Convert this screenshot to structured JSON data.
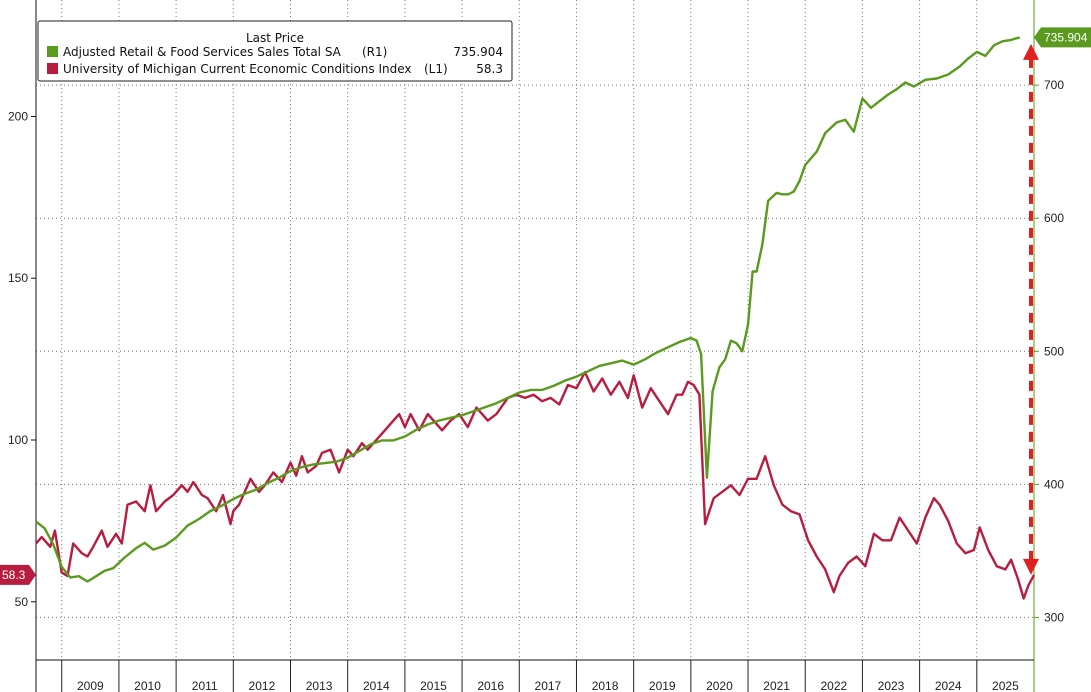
{
  "chart_data": {
    "type": "line",
    "title": "",
    "legend": {
      "header": "Last Price",
      "placement": "top-left",
      "entries": [
        {
          "name": "Adjusted Retail & Food Services Sales Total SA",
          "axis": "(R1)",
          "last": "735.904",
          "color": "#5a9a1e"
        },
        {
          "name": "University of Michigan Current Economic Conditions Index",
          "axis": "(L1)",
          "last": "58.3",
          "color": "#b81c3f"
        }
      ]
    },
    "x_axis": {
      "range": [
        2008.55,
        2026.0
      ],
      "year_labels": [
        "2009",
        "2010",
        "2011",
        "2012",
        "2013",
        "2014",
        "2015",
        "2016",
        "2017",
        "2018",
        "2019",
        "2020",
        "2021",
        "2022",
        "2023",
        "2024",
        "2025"
      ]
    },
    "left_axis": {
      "range": [
        32,
        236
      ],
      "ticks": [
        50,
        100,
        150,
        200
      ],
      "tick_labels": [
        "50",
        "100",
        "150",
        "200"
      ]
    },
    "right_axis": {
      "range": [
        268,
        764
      ],
      "ticks": [
        300,
        400,
        500,
        600,
        700
      ],
      "tick_labels": [
        "300",
        "400",
        "500",
        "600",
        "700"
      ]
    },
    "grid": "dotted",
    "series": [
      {
        "name": "University of Michigan Current Economic Conditions Index",
        "axis": "left",
        "color": "#b81c3f",
        "points": [
          [
            2008.55,
            68
          ],
          [
            2008.65,
            70
          ],
          [
            2008.8,
            67
          ],
          [
            2008.88,
            72
          ],
          [
            2009.0,
            59
          ],
          [
            2009.1,
            58
          ],
          [
            2009.2,
            68
          ],
          [
            2009.35,
            65
          ],
          [
            2009.45,
            64
          ],
          [
            2009.55,
            67
          ],
          [
            2009.7,
            72
          ],
          [
            2009.8,
            67
          ],
          [
            2009.95,
            71
          ],
          [
            2010.05,
            68
          ],
          [
            2010.15,
            80
          ],
          [
            2010.3,
            81
          ],
          [
            2010.45,
            78
          ],
          [
            2010.55,
            86
          ],
          [
            2010.65,
            78
          ],
          [
            2010.8,
            81
          ],
          [
            2010.95,
            83
          ],
          [
            2011.1,
            86
          ],
          [
            2011.2,
            84
          ],
          [
            2011.3,
            87
          ],
          [
            2011.45,
            83
          ],
          [
            2011.55,
            82
          ],
          [
            2011.7,
            78
          ],
          [
            2011.82,
            83
          ],
          [
            2011.95,
            74
          ],
          [
            2012.0,
            78
          ],
          [
            2012.1,
            80
          ],
          [
            2012.2,
            84
          ],
          [
            2012.3,
            88
          ],
          [
            2012.45,
            84
          ],
          [
            2012.55,
            86
          ],
          [
            2012.7,
            90
          ],
          [
            2012.85,
            87
          ],
          [
            2013.0,
            93
          ],
          [
            2013.1,
            89
          ],
          [
            2013.2,
            95
          ],
          [
            2013.3,
            90
          ],
          [
            2013.45,
            92
          ],
          [
            2013.55,
            96
          ],
          [
            2013.7,
            97
          ],
          [
            2013.85,
            90
          ],
          [
            2014.0,
            97
          ],
          [
            2014.1,
            95
          ],
          [
            2014.25,
            99
          ],
          [
            2014.35,
            97
          ],
          [
            2014.5,
            100
          ],
          [
            2014.65,
            103
          ],
          [
            2014.75,
            105
          ],
          [
            2014.9,
            108
          ],
          [
            2015.0,
            104
          ],
          [
            2015.1,
            108
          ],
          [
            2015.25,
            103
          ],
          [
            2015.4,
            108
          ],
          [
            2015.5,
            106
          ],
          [
            2015.65,
            103
          ],
          [
            2015.8,
            106
          ],
          [
            2015.95,
            108
          ],
          [
            2016.1,
            104
          ],
          [
            2016.25,
            110
          ],
          [
            2016.45,
            106
          ],
          [
            2016.6,
            108
          ],
          [
            2016.8,
            113
          ],
          [
            2016.95,
            114
          ],
          [
            2017.1,
            113
          ],
          [
            2017.25,
            114
          ],
          [
            2017.4,
            112
          ],
          [
            2017.55,
            113
          ],
          [
            2017.7,
            111
          ],
          [
            2017.85,
            117
          ],
          [
            2018.0,
            116
          ],
          [
            2018.15,
            121
          ],
          [
            2018.3,
            115
          ],
          [
            2018.45,
            119
          ],
          [
            2018.6,
            114
          ],
          [
            2018.75,
            118
          ],
          [
            2018.9,
            113
          ],
          [
            2019.0,
            120
          ],
          [
            2019.15,
            110
          ],
          [
            2019.3,
            116
          ],
          [
            2019.45,
            112
          ],
          [
            2019.6,
            108
          ],
          [
            2019.75,
            114
          ],
          [
            2019.85,
            114
          ],
          [
            2019.95,
            118
          ],
          [
            2020.05,
            117
          ],
          [
            2020.15,
            114
          ],
          [
            2020.25,
            74
          ],
          [
            2020.4,
            82
          ],
          [
            2020.55,
            84
          ],
          [
            2020.7,
            86
          ],
          [
            2020.85,
            83
          ],
          [
            2021.0,
            88
          ],
          [
            2021.15,
            88
          ],
          [
            2021.3,
            95
          ],
          [
            2021.45,
            86
          ],
          [
            2021.6,
            80
          ],
          [
            2021.75,
            78
          ],
          [
            2021.9,
            77
          ],
          [
            2022.05,
            69
          ],
          [
            2022.2,
            64
          ],
          [
            2022.35,
            60
          ],
          [
            2022.5,
            53
          ],
          [
            2022.6,
            58
          ],
          [
            2022.75,
            62
          ],
          [
            2022.9,
            64
          ],
          [
            2023.05,
            61
          ],
          [
            2023.2,
            71
          ],
          [
            2023.35,
            69
          ],
          [
            2023.5,
            69
          ],
          [
            2023.65,
            76
          ],
          [
            2023.8,
            72
          ],
          [
            2023.95,
            68
          ],
          [
            2024.1,
            76
          ],
          [
            2024.25,
            82
          ],
          [
            2024.35,
            80
          ],
          [
            2024.5,
            75
          ],
          [
            2024.65,
            68
          ],
          [
            2024.8,
            65
          ],
          [
            2024.95,
            66
          ],
          [
            2025.05,
            73
          ],
          [
            2025.2,
            66
          ],
          [
            2025.35,
            61
          ],
          [
            2025.5,
            60
          ],
          [
            2025.6,
            63
          ],
          [
            2025.72,
            57
          ],
          [
            2025.82,
            51
          ],
          [
            2025.9,
            55
          ],
          [
            2026.0,
            58.3
          ]
        ]
      },
      {
        "name": "Adjusted Retail & Food Services Sales Total SA",
        "axis": "right",
        "color": "#5a9a1e",
        "points": [
          [
            2008.55,
            372
          ],
          [
            2008.7,
            367
          ],
          [
            2008.85,
            355
          ],
          [
            2009.0,
            338
          ],
          [
            2009.15,
            330
          ],
          [
            2009.3,
            331
          ],
          [
            2009.45,
            327
          ],
          [
            2009.6,
            331
          ],
          [
            2009.75,
            335
          ],
          [
            2009.9,
            337
          ],
          [
            2010.1,
            345
          ],
          [
            2010.3,
            352
          ],
          [
            2010.45,
            356
          ],
          [
            2010.6,
            351
          ],
          [
            2010.8,
            354
          ],
          [
            2011.0,
            360
          ],
          [
            2011.2,
            369
          ],
          [
            2011.4,
            374
          ],
          [
            2011.6,
            380
          ],
          [
            2011.8,
            384
          ],
          [
            2012.0,
            389
          ],
          [
            2012.2,
            393
          ],
          [
            2012.4,
            396
          ],
          [
            2012.6,
            401
          ],
          [
            2012.8,
            405
          ],
          [
            2013.0,
            410
          ],
          [
            2013.2,
            413
          ],
          [
            2013.4,
            415
          ],
          [
            2013.6,
            416
          ],
          [
            2013.8,
            417
          ],
          [
            2014.0,
            420
          ],
          [
            2014.2,
            425
          ],
          [
            2014.4,
            430
          ],
          [
            2014.6,
            433
          ],
          [
            2014.8,
            433
          ],
          [
            2015.0,
            436
          ],
          [
            2015.2,
            441
          ],
          [
            2015.4,
            445
          ],
          [
            2015.6,
            448
          ],
          [
            2015.8,
            450
          ],
          [
            2016.0,
            452
          ],
          [
            2016.2,
            455
          ],
          [
            2016.4,
            458
          ],
          [
            2016.6,
            461
          ],
          [
            2016.8,
            465
          ],
          [
            2017.0,
            469
          ],
          [
            2017.2,
            471
          ],
          [
            2017.4,
            471
          ],
          [
            2017.6,
            474
          ],
          [
            2017.8,
            478
          ],
          [
            2018.0,
            481
          ],
          [
            2018.2,
            485
          ],
          [
            2018.4,
            489
          ],
          [
            2018.6,
            491
          ],
          [
            2018.8,
            493
          ],
          [
            2019.0,
            490
          ],
          [
            2019.2,
            494
          ],
          [
            2019.4,
            499
          ],
          [
            2019.6,
            503
          ],
          [
            2019.8,
            507
          ],
          [
            2020.0,
            510
          ],
          [
            2020.1,
            508
          ],
          [
            2020.18,
            498
          ],
          [
            2020.28,
            405
          ],
          [
            2020.38,
            470
          ],
          [
            2020.5,
            488
          ],
          [
            2020.6,
            494
          ],
          [
            2020.7,
            508
          ],
          [
            2020.8,
            506
          ],
          [
            2020.9,
            500
          ],
          [
            2021.0,
            520
          ],
          [
            2021.08,
            560
          ],
          [
            2021.15,
            560
          ],
          [
            2021.25,
            580
          ],
          [
            2021.35,
            613
          ],
          [
            2021.5,
            619
          ],
          [
            2021.6,
            618
          ],
          [
            2021.7,
            618
          ],
          [
            2021.8,
            620
          ],
          [
            2021.9,
            628
          ],
          [
            2022.0,
            640
          ],
          [
            2022.2,
            650
          ],
          [
            2022.35,
            664
          ],
          [
            2022.55,
            672
          ],
          [
            2022.7,
            674
          ],
          [
            2022.85,
            665
          ],
          [
            2023.0,
            690
          ],
          [
            2023.15,
            683
          ],
          [
            2023.3,
            688
          ],
          [
            2023.45,
            693
          ],
          [
            2023.6,
            697
          ],
          [
            2023.75,
            702
          ],
          [
            2023.9,
            699
          ],
          [
            2024.1,
            704
          ],
          [
            2024.3,
            705
          ],
          [
            2024.5,
            708
          ],
          [
            2024.7,
            714
          ],
          [
            2024.85,
            720
          ],
          [
            2025.0,
            725
          ],
          [
            2025.15,
            722
          ],
          [
            2025.3,
            730
          ],
          [
            2025.45,
            733
          ],
          [
            2025.6,
            734
          ],
          [
            2025.75,
            735.904
          ]
        ]
      }
    ],
    "annotation": {
      "type": "double-arrow",
      "style": "dashed",
      "color": "#e02020",
      "x": 2026.0,
      "from_right_value": 332,
      "to_right_value": 731
    }
  }
}
